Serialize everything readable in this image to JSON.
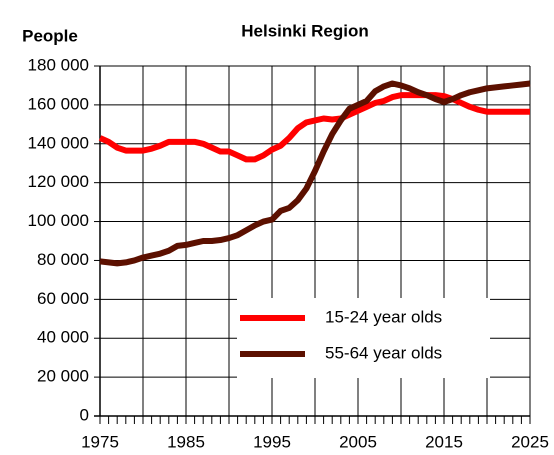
{
  "chart_data": {
    "type": "line",
    "title": "Helsinki Region",
    "y_label": "People",
    "x": [
      1975,
      1976,
      1977,
      1978,
      1979,
      1980,
      1981,
      1982,
      1983,
      1984,
      1985,
      1986,
      1987,
      1988,
      1989,
      1990,
      1991,
      1992,
      1993,
      1994,
      1995,
      1996,
      1997,
      1998,
      1999,
      2000,
      2001,
      2002,
      2003,
      2004,
      2005,
      2006,
      2007,
      2008,
      2009,
      2010,
      2011,
      2012,
      2013,
      2014,
      2015,
      2016,
      2017,
      2018,
      2019,
      2020,
      2021,
      2022,
      2023,
      2024,
      2025
    ],
    "series": [
      {
        "name": "15-24 year olds",
        "color": "#ff0000",
        "values": [
          143000,
          141000,
          138000,
          136500,
          136500,
          136500,
          137500,
          139000,
          141000,
          141000,
          141000,
          141000,
          140000,
          138000,
          136000,
          136000,
          134000,
          132000,
          132000,
          134000,
          137000,
          139000,
          143000,
          148000,
          151000,
          152000,
          153000,
          152500,
          153000,
          155000,
          157000,
          159000,
          161000,
          162000,
          164000,
          165000,
          165000,
          165000,
          165000,
          165000,
          164500,
          163000,
          161000,
          159000,
          157500,
          156500,
          156500,
          156500,
          156500,
          156500,
          156500
        ]
      },
      {
        "name": "55-64 year olds",
        "color": "#5c1000",
        "values": [
          79500,
          79000,
          78500,
          79000,
          80000,
          81500,
          82500,
          83500,
          85000,
          87500,
          88000,
          89000,
          90000,
          90000,
          90500,
          91500,
          93000,
          95500,
          98000,
          100000,
          101000,
          105500,
          107000,
          111000,
          117000,
          126000,
          136000,
          145000,
          152000,
          158000,
          160000,
          162000,
          167000,
          169500,
          171000,
          170000,
          168500,
          166500,
          165000,
          163000,
          161500,
          163000,
          165000,
          166500,
          167500,
          168500,
          169000,
          169500,
          170000,
          170500,
          171000
        ]
      }
    ],
    "xlim": [
      1975,
      2025
    ],
    "xticks": [
      1975,
      1985,
      1995,
      2005,
      2015,
      2025
    ],
    "ylim": [
      0,
      180000
    ],
    "yticks": [
      0,
      {
        "value": 20000,
        "label": "20 000"
      },
      {
        "value": 40000,
        "label": "40 000"
      },
      {
        "value": 60000,
        "label": "60 000"
      },
      {
        "value": 80000,
        "label": "80 000"
      },
      {
        "value": 100000,
        "label": "100 000"
      },
      {
        "value": 120000,
        "label": "120 000"
      },
      {
        "value": 140000,
        "label": "140 000"
      },
      {
        "value": 160000,
        "label": "160 000"
      },
      {
        "value": 180000,
        "label": "180 000"
      }
    ],
    "grid": true,
    "legend": "lower right"
  }
}
